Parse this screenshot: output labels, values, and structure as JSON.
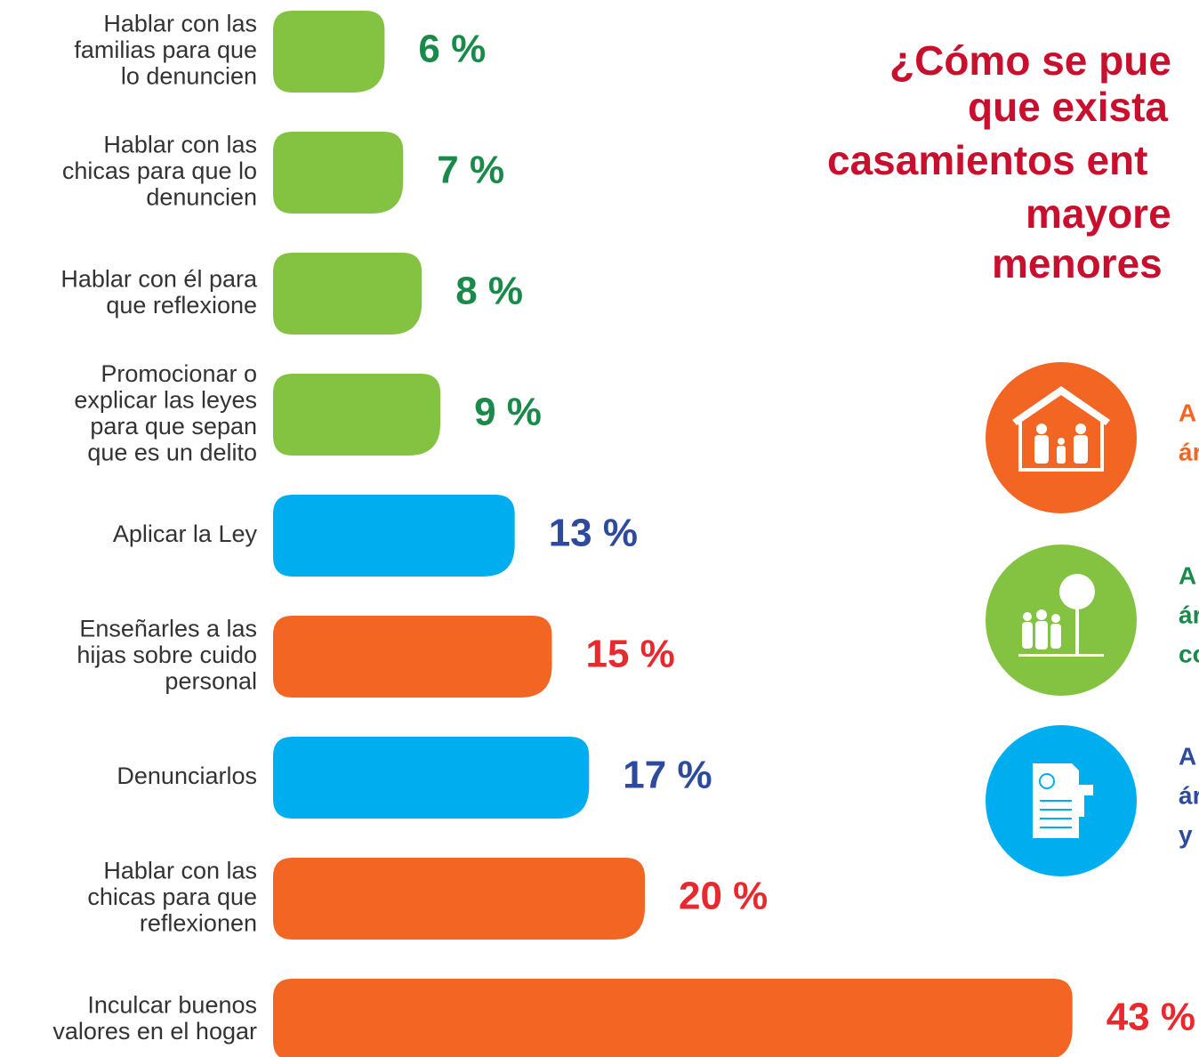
{
  "chart_data": {
    "type": "bar",
    "orientation": "horizontal",
    "title_lines": [
      "¿Cómo se pue",
      "que exista",
      "casamientos ent",
      "mayore",
      "menores"
    ],
    "title_color": "#c8102e",
    "categories": [
      [
        "Hablar con las",
        "familias para que",
        "lo denuncien"
      ],
      [
        "Hablar con las",
        "chicas para que lo",
        "denuncien"
      ],
      [
        "Hablar con él para",
        "que reflexione"
      ],
      [
        "Promocionar o",
        "explicar las leyes",
        "para que sepan",
        "que es un delito"
      ],
      [
        "Aplicar la Ley"
      ],
      [
        "Enseñarles a las",
        "hijas sobre cuido",
        "personal"
      ],
      [
        "Denunciarlos"
      ],
      [
        "Hablar con las",
        "chicas para que",
        "reflexionen"
      ],
      [
        "Inculcar buenos",
        "valores en el hogar"
      ]
    ],
    "values": [
      6,
      7,
      8,
      9,
      13,
      15,
      17,
      20,
      43
    ],
    "value_labels": [
      "6 %",
      "7 %",
      "8 %",
      "9 %",
      "13 %",
      "15 %",
      "17 %",
      "20 %",
      "43 %"
    ],
    "colors": [
      "#84c341",
      "#84c341",
      "#84c341",
      "#84c341",
      "#00aeef",
      "#f26522",
      "#00aeef",
      "#f26522",
      "#f26522"
    ],
    "label_colors": [
      "#1a8a4a",
      "#1a8a4a",
      "#1a8a4a",
      "#1a8a4a",
      "#2e4a9e",
      "#e8292e",
      "#2e4a9e",
      "#e8292e",
      "#e8292e"
    ],
    "legend": [
      {
        "lines": [
          "A",
          "ár"
        ],
        "color": "#f26522"
      },
      {
        "lines": [
          "A",
          "ár",
          "co"
        ],
        "color": "#84c341",
        "text_color": "#1a8a4a"
      },
      {
        "lines": [
          "A",
          "ár",
          "y"
        ],
        "color": "#00aeef",
        "text_color": "#2e4a9e"
      }
    ]
  }
}
